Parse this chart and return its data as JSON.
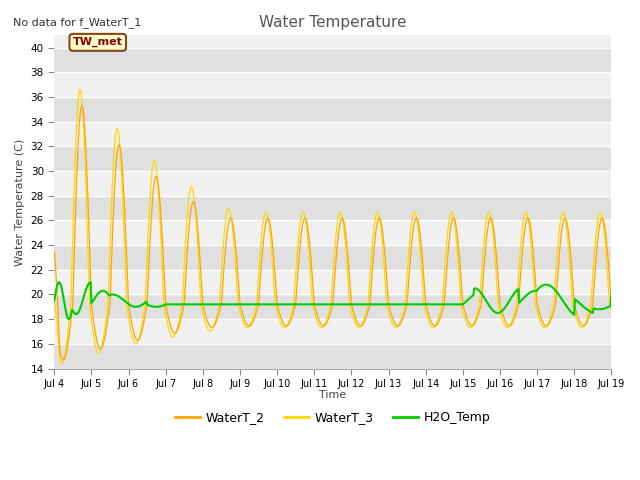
{
  "title": "Water Temperature",
  "subtitle": "No data for f_WaterT_1",
  "ylabel": "Water Temperature (C)",
  "xlabel": "Time",
  "ylim": [
    14,
    41
  ],
  "yticks": [
    14,
    16,
    18,
    20,
    22,
    24,
    26,
    28,
    30,
    32,
    34,
    36,
    38,
    40
  ],
  "xtick_labels": [
    "Jul 4",
    "Jul 5",
    "Jul 6",
    "Jul 7",
    "Jul 8",
    "Jul 9",
    "Jul 10",
    "Jul 11",
    "Jul 12",
    "Jul 13",
    "Jul 14",
    "Jul 15",
    "Jul 16",
    "Jul 17",
    "Jul 18",
    "Jul 19"
  ],
  "color_WaterT2": "#FFA500",
  "color_WaterT3": "#FFD700",
  "color_H2O": "#00CC00",
  "legend_entries": [
    "WaterT_2",
    "WaterT_3",
    "H2O_Temp"
  ],
  "TW_met_label": "TW_met",
  "plot_bg_light": "#F0F0F0",
  "plot_bg_dark": "#E0E0E0",
  "grid_color": "#FFFFFF",
  "title_color": "#555555"
}
